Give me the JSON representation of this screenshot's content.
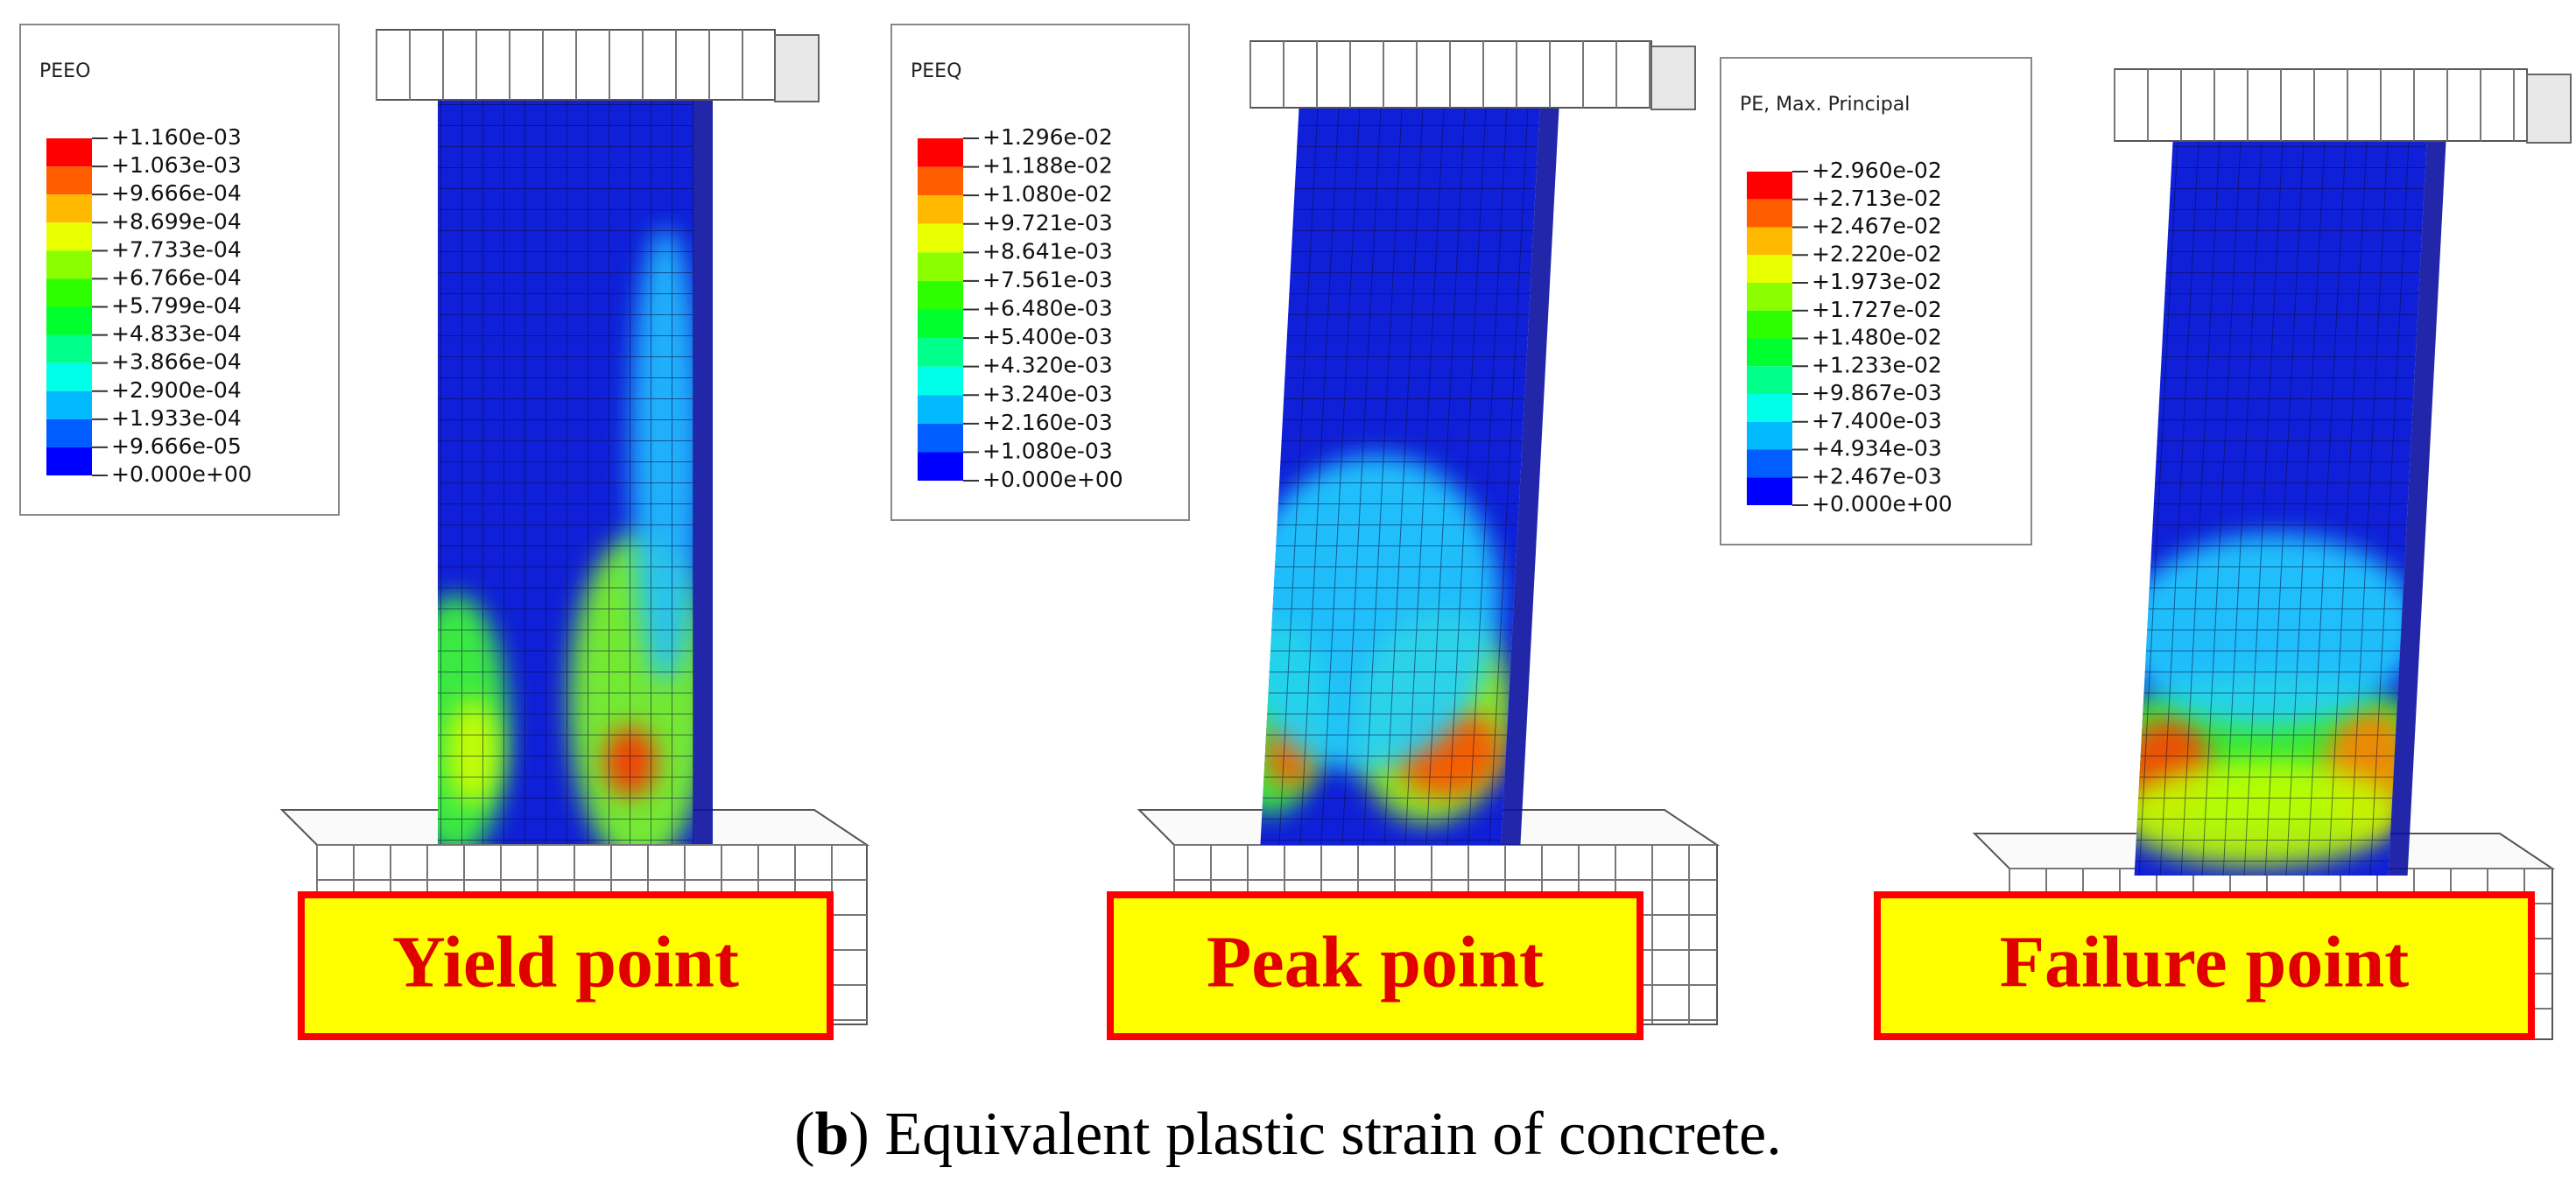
{
  "panels": [
    {
      "legend": {
        "title": "PEEO",
        "values": [
          "+1.160e-03",
          "+1.063e-03",
          "+9.666e-04",
          "+8.699e-04",
          "+7.733e-04",
          "+6.766e-04",
          "+5.799e-04",
          "+4.833e-04",
          "+3.866e-04",
          "+2.900e-04",
          "+1.933e-04",
          "+9.666e-05",
          "+0.000e+00"
        ]
      },
      "label": "Yield point"
    },
    {
      "legend": {
        "title": "PEEQ",
        "values": [
          "+1.296e-02",
          "+1.188e-02",
          "+1.080e-02",
          "+9.721e-03",
          "+8.641e-03",
          "+7.561e-03",
          "+6.480e-03",
          "+5.400e-03",
          "+4.320e-03",
          "+3.240e-03",
          "+2.160e-03",
          "+1.080e-03",
          "+0.000e+00"
        ]
      },
      "label": "Peak point"
    },
    {
      "legend": {
        "title": "PE, Max. Principal",
        "values": [
          "+2.960e-02",
          "+2.713e-02",
          "+2.467e-02",
          "+2.220e-02",
          "+1.973e-02",
          "+1.727e-02",
          "+1.480e-02",
          "+1.233e-02",
          "+9.867e-03",
          "+7.400e-03",
          "+4.934e-03",
          "+2.467e-03",
          "+0.000e+00"
        ]
      },
      "label": "Failure point"
    }
  ],
  "caption": [
    "(",
    "b",
    ") Equivalent plastic strain of concrete."
  ]
}
